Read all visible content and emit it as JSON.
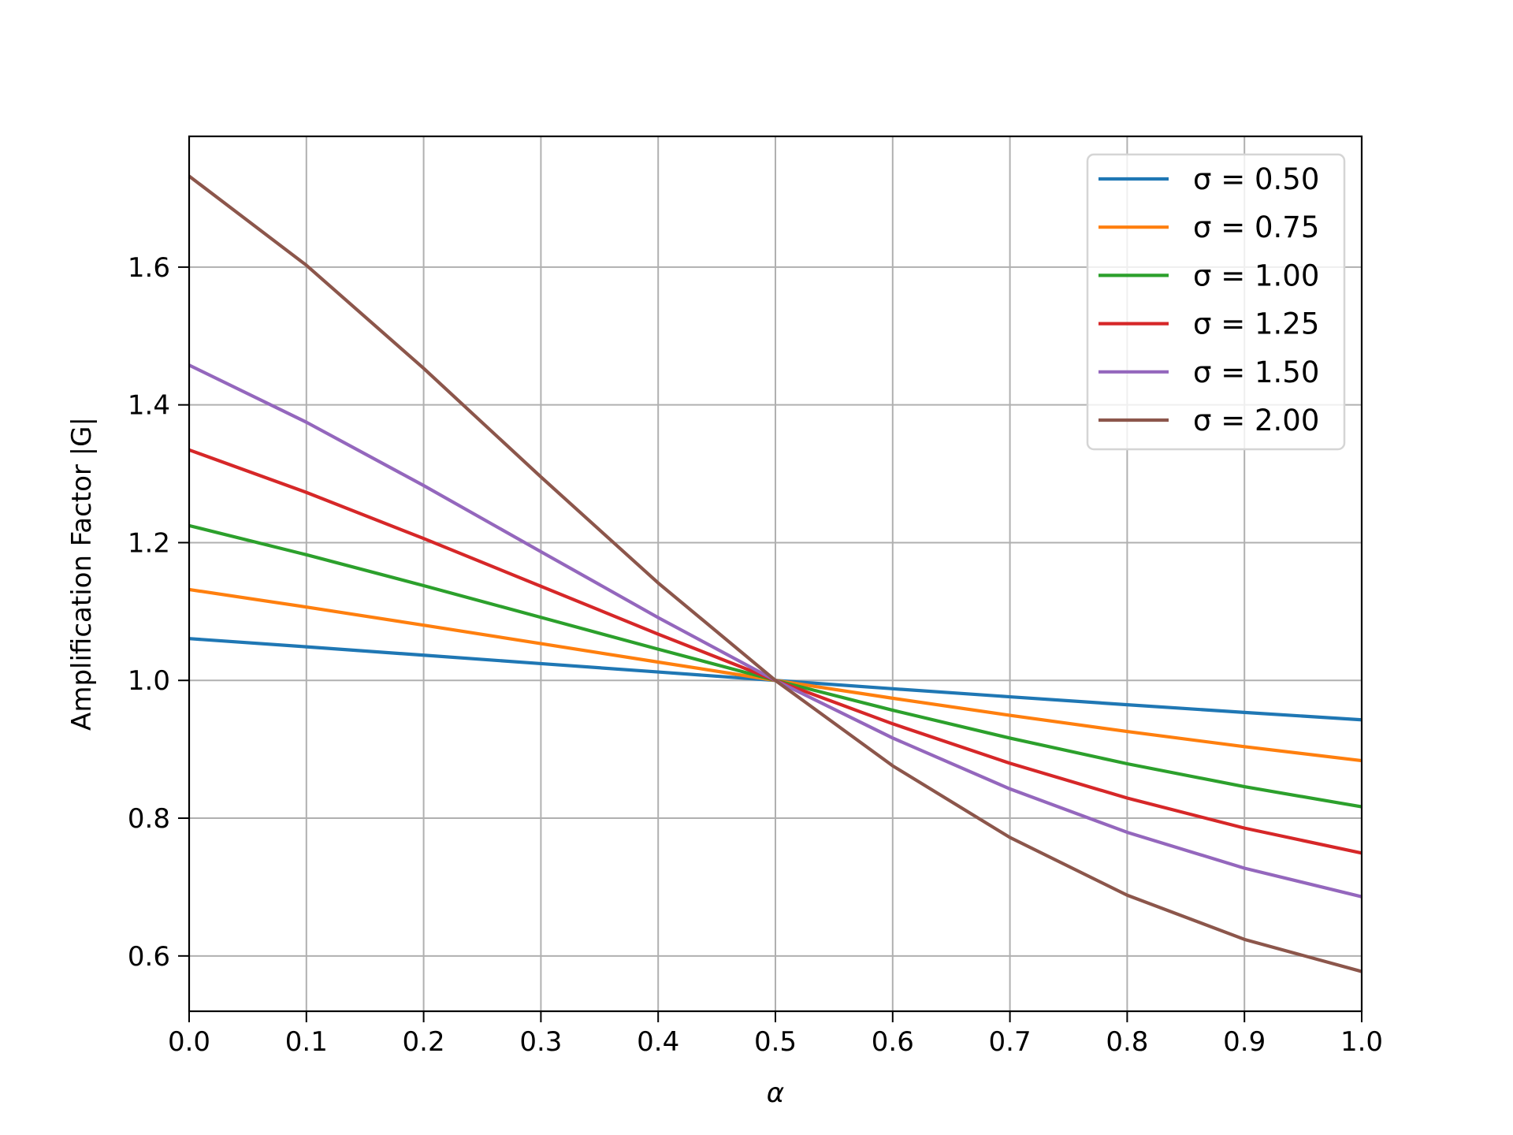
{
  "chart_data": {
    "type": "line",
    "title": "",
    "xlabel": "α",
    "ylabel": "Amplification Factor |G|",
    "xlim": [
      0.0,
      1.0
    ],
    "ylim": [
      0.5197,
      1.7898
    ],
    "xticks": [
      "0.0",
      "0.1",
      "0.2",
      "0.3",
      "0.4",
      "0.5",
      "0.6",
      "0.7",
      "0.8",
      "0.9",
      "1.0"
    ],
    "xtick_values": [
      0,
      0.1,
      0.2,
      0.3,
      0.4,
      0.5,
      0.6,
      0.7,
      0.8,
      0.9,
      1.0
    ],
    "yticks": [
      "0.6",
      "0.8",
      "1.0",
      "1.2",
      "1.4",
      "1.6"
    ],
    "ytick_values": [
      0.6,
      0.8,
      1.0,
      1.2,
      1.4,
      1.6
    ],
    "grid": true,
    "legend_placement": "upper-right",
    "x": [
      0,
      0.1,
      0.2,
      0.3,
      0.4,
      0.5,
      0.6,
      0.7,
      0.8,
      0.9,
      1.0
    ],
    "series": [
      {
        "name": "σ =  0.50",
        "color": "#1f77b4",
        "values": [
          1.0607,
          1.0488,
          1.0366,
          1.0244,
          1.0122,
          1.0,
          0.9879,
          0.9762,
          0.9647,
          0.9535,
          0.9428
        ]
      },
      {
        "name": "σ =  0.75",
        "color": "#ff7f0e",
        "values": [
          1.1319,
          1.1065,
          1.0802,
          1.0534,
          1.0266,
          1.0,
          0.9741,
          0.9493,
          0.9258,
          0.9038,
          0.8835
        ]
      },
      {
        "name": "σ =  1.00",
        "color": "#2ca02c",
        "values": [
          1.2247,
          1.1824,
          1.1376,
          1.0915,
          1.0453,
          1.0,
          0.9567,
          0.9162,
          0.879,
          0.8457,
          0.8165
        ]
      },
      {
        "name": "σ =  1.25",
        "color": "#d62728",
        "values": [
          1.3346,
          1.2729,
          1.206,
          1.1367,
          1.0672,
          1.0,
          0.937,
          0.8797,
          0.8292,
          0.7856,
          0.7493
        ]
      },
      {
        "name": "σ =  1.50",
        "color": "#9467bd",
        "values": [
          1.4577,
          1.3748,
          1.2829,
          1.1869,
          1.0912,
          1.0,
          0.9164,
          0.8425,
          0.7795,
          0.7274,
          0.686
        ]
      },
      {
        "name": "σ =  2.00",
        "color": "#8c564b",
        "values": [
          1.7321,
          1.6027,
          1.453,
          1.2954,
          1.1415,
          1.0,
          0.876,
          0.772,
          0.6882,
          0.624,
          0.5774
        ]
      }
    ]
  }
}
